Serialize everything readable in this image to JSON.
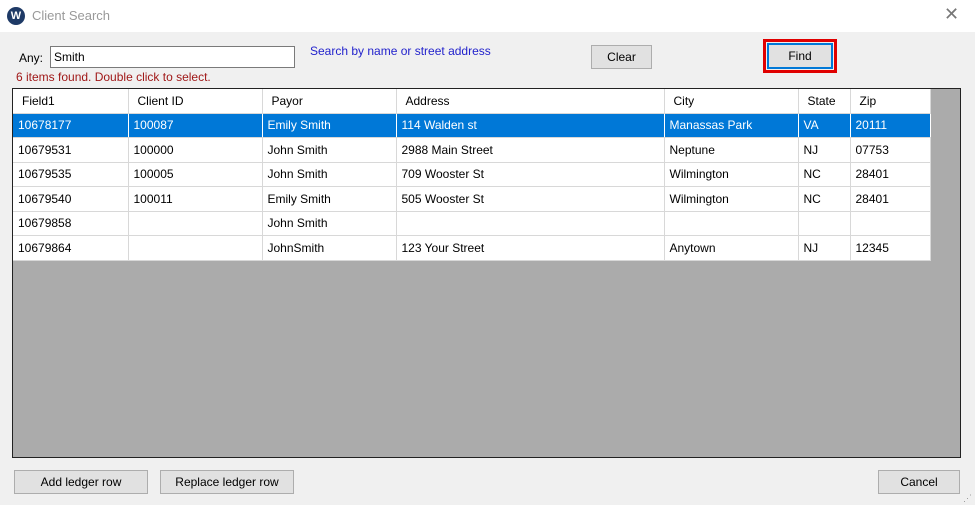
{
  "window": {
    "title": "Client Search",
    "logo_text": "W",
    "close_icon": "close-icon"
  },
  "search": {
    "label": "Any:",
    "value": "Smith",
    "hint": "Search by name or street address",
    "status": "6 items found.  Double click to select."
  },
  "buttons": {
    "clear": "Clear",
    "find": "Find",
    "add_ledger_row": "Add ledger row",
    "replace_ledger_row": "Replace ledger row",
    "cancel": "Cancel"
  },
  "colors": {
    "selection": "#0078d7",
    "highlight_box": "#e00000",
    "status_text": "#a01818",
    "hint_text": "#2222cc"
  },
  "table": {
    "columns": [
      "Field1",
      "Client ID",
      "Payor",
      "Address",
      "City",
      "State",
      "Zip"
    ],
    "selected_row": 0,
    "rows": [
      [
        "10678177",
        "100087",
        "Emily Smith",
        "114 Walden st",
        "Manassas Park",
        "VA",
        "20111"
      ],
      [
        "10679531",
        "100000",
        "John Smith",
        "2988 Main Street",
        "Neptune",
        "NJ",
        "07753"
      ],
      [
        "10679535",
        "100005",
        "John Smith",
        "709 Wooster St",
        "Wilmington",
        "NC",
        "28401"
      ],
      [
        "10679540",
        "100011",
        "Emily Smith",
        "505 Wooster St",
        "Wilmington",
        "NC",
        "28401"
      ],
      [
        "10679858",
        "",
        "John Smith",
        "",
        "",
        "",
        ""
      ],
      [
        "10679864",
        "",
        "JohnSmith",
        "123 Your Street",
        "Anytown",
        "NJ",
        "12345"
      ]
    ]
  }
}
